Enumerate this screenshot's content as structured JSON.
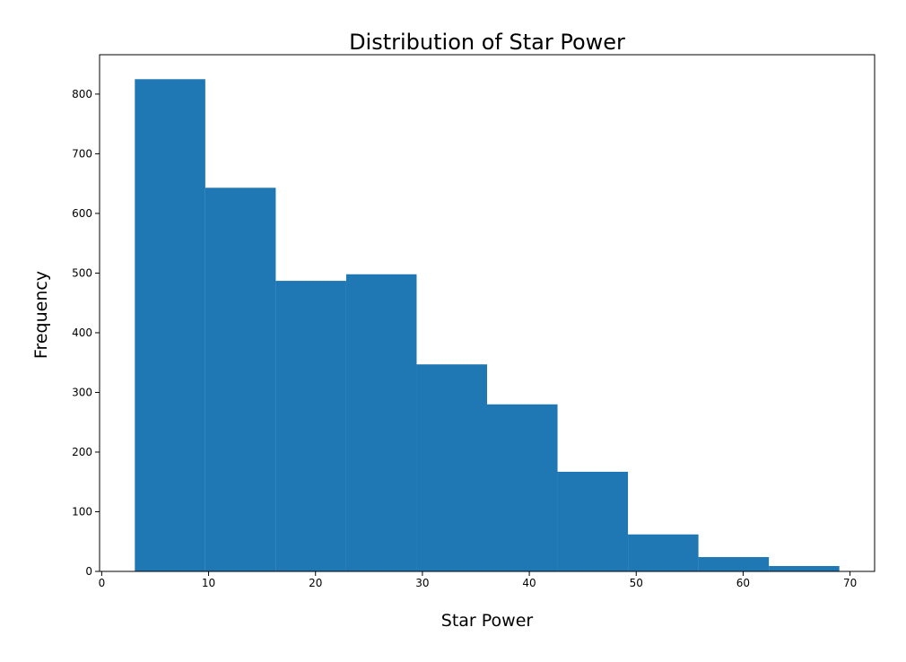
{
  "chart_data": {
    "type": "bar",
    "subtype": "histogram",
    "title": "Distribution of Star Power",
    "xlabel": "Star Power",
    "ylabel": "Frequency",
    "bin_edges": [
      3.1,
      9.69,
      16.28,
      22.87,
      29.46,
      36.05,
      42.64,
      49.23,
      55.82,
      62.41,
      69.0
    ],
    "values": [
      825,
      643,
      487,
      498,
      347,
      280,
      167,
      62,
      24,
      9
    ],
    "xlim": [
      -0.2,
      72.3
    ],
    "ylim": [
      0,
      866
    ],
    "xticks": [
      0,
      10,
      20,
      30,
      40,
      50,
      60,
      70
    ],
    "yticks": [
      0,
      100,
      200,
      300,
      400,
      500,
      600,
      700,
      800
    ],
    "bar_color": "#1f77b4",
    "grid": false,
    "legend": "none"
  }
}
